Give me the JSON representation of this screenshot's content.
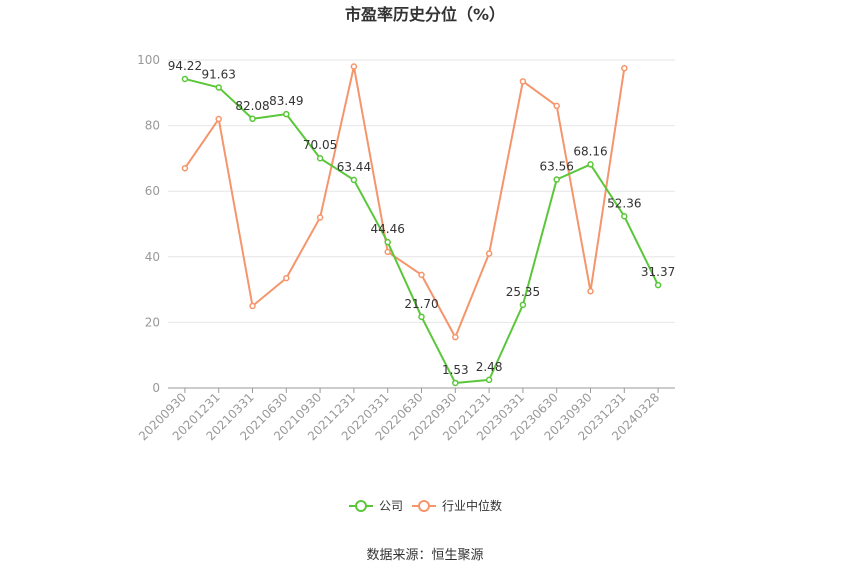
{
  "chart_data": {
    "type": "line",
    "title": "市盈率历史分位（%）",
    "categories": [
      "20200930",
      "20201231",
      "20210331",
      "20210630",
      "20210930",
      "20211231",
      "20220331",
      "20220630",
      "20220930",
      "20221231",
      "20230331",
      "20230630",
      "20230930",
      "20231231",
      "20240328"
    ],
    "series": [
      {
        "name": "公司",
        "color": "#5ac73a",
        "values": [
          94.22,
          91.63,
          82.08,
          83.49,
          70.05,
          63.44,
          44.46,
          21.7,
          1.53,
          2.48,
          25.35,
          63.56,
          68.16,
          52.36,
          31.37
        ],
        "labels": [
          "94.22",
          "91.63",
          "82.08",
          "83.49",
          "70.05",
          "63.44",
          "44.46",
          "21.70",
          "1.53",
          "2.48",
          "25.35",
          "63.56",
          "68.16",
          "52.36",
          "31.37"
        ]
      },
      {
        "name": "行业中位数",
        "color": "#f5956b",
        "values": [
          67,
          82,
          25,
          33.5,
          52,
          98,
          41.5,
          34.5,
          15.5,
          41,
          93.5,
          86,
          29.5,
          97.5,
          null
        ]
      }
    ],
    "yticks": [
      "0",
      "20",
      "40",
      "60",
      "80",
      "100"
    ],
    "ylim": [
      0,
      100
    ],
    "grid": true,
    "legend": "bottom-center"
  },
  "footer": {
    "source": "数据来源：恒生聚源"
  }
}
